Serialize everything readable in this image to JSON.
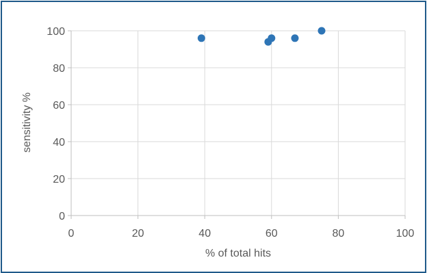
{
  "chart_data": {
    "type": "scatter",
    "title": "",
    "xlabel": "% of total hits",
    "ylabel": "sensitivity %",
    "xlim": [
      0,
      100
    ],
    "ylim": [
      0,
      100
    ],
    "xticks": [
      0,
      20,
      40,
      60,
      80,
      100
    ],
    "yticks": [
      0,
      20,
      40,
      60,
      80,
      100
    ],
    "grid": true,
    "legend": "none",
    "series": [
      {
        "color": "#2e75b6",
        "x": [
          39,
          59,
          60,
          67,
          75
        ],
        "y": [
          96,
          94,
          96,
          96,
          100
        ]
      }
    ]
  }
}
